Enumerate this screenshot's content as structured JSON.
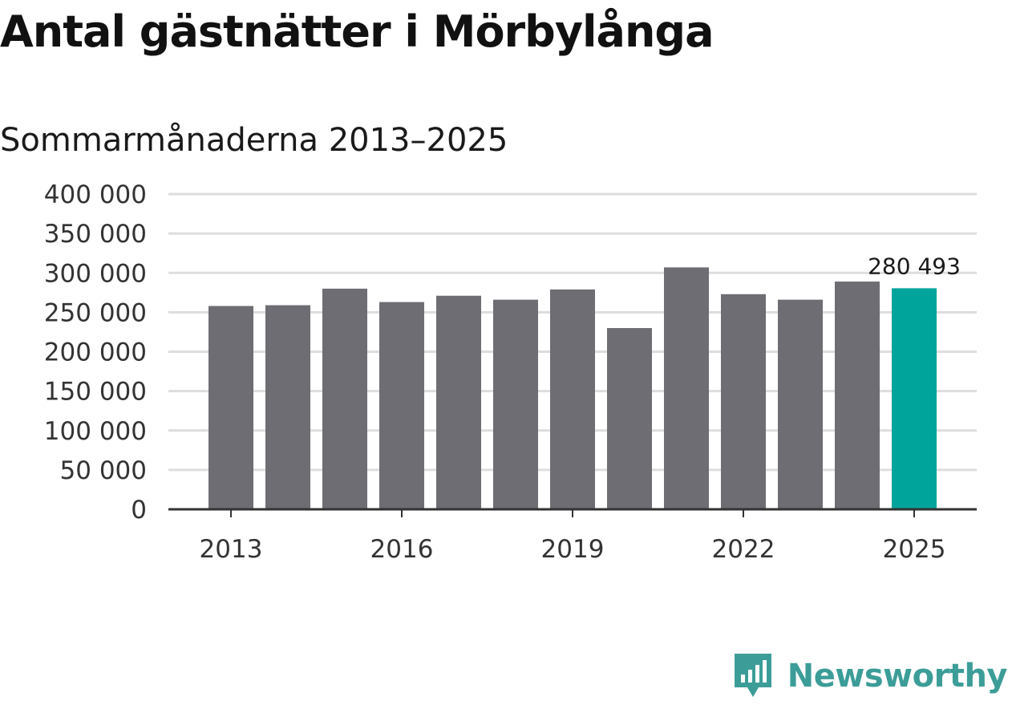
{
  "title": "Antal gästnätter i Mörbylånga",
  "subtitle": "Sommarmånaderna 2013–2025",
  "brand": {
    "name": "Newsworthy",
    "icon": "newsworthy-logo-icon"
  },
  "colors": {
    "bar": "#6e6d73",
    "highlight": "#00a49a",
    "grid": "#dddddd",
    "axis": "#333333",
    "brand": "#3c9d98"
  },
  "chart_data": {
    "type": "bar",
    "categories": [
      "2013",
      "2014",
      "2015",
      "2016",
      "2017",
      "2018",
      "2019",
      "2020",
      "2021",
      "2022",
      "2023",
      "2024",
      "2025"
    ],
    "values": [
      258000,
      259000,
      280000,
      263000,
      271000,
      266000,
      279000,
      230000,
      307000,
      273000,
      266000,
      289000,
      280493
    ],
    "x_tick_labels": [
      "2013",
      "2016",
      "2019",
      "2022",
      "2025"
    ],
    "y_ticks": [
      0,
      50000,
      100000,
      150000,
      200000,
      250000,
      300000,
      350000,
      400000
    ],
    "y_tick_labels": [
      "0",
      "50 000",
      "100 000",
      "150 000",
      "200 000",
      "250 000",
      "300 000",
      "350 000",
      "400 000"
    ],
    "ylim": [
      0,
      400000
    ],
    "highlight_category": "2025",
    "annotations": [
      {
        "category": "2025",
        "text": "280 493"
      }
    ],
    "grid": true,
    "legend": "none"
  }
}
